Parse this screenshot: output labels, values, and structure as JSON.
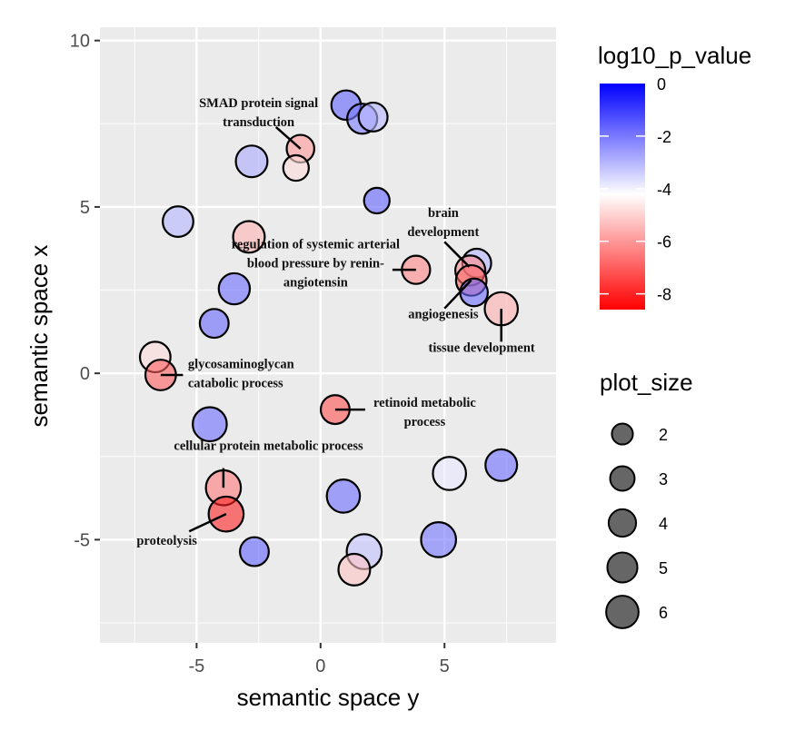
{
  "chart_data": {
    "type": "scatter",
    "subtype": "bubble",
    "title": "",
    "xlabel": "semantic space y",
    "ylabel": "semantic space x",
    "xlim": [
      -8.9,
      9.5
    ],
    "ylim": [
      -8.1,
      10.4
    ],
    "x_ticks": [
      -5,
      0,
      5
    ],
    "x_tick_labels": [
      "-5",
      "0",
      "5"
    ],
    "y_ticks": [
      -5,
      0,
      5,
      10
    ],
    "y_tick_labels": [
      "-5",
      "0",
      "5",
      "10"
    ],
    "grid": true,
    "color_legend": {
      "title": "log10_p_value",
      "placement": "top-right",
      "range": [
        -8.6,
        0
      ],
      "colors": {
        "low": "#ff0000",
        "mid": "#ffffff",
        "high": "#0000ff"
      },
      "midpoint": -4.2,
      "ticks": [
        0,
        -2,
        -4,
        -6,
        -8
      ],
      "tick_labels": [
        "0",
        "-2",
        "-4",
        "-6",
        "-8"
      ]
    },
    "size_legend": {
      "title": "plot_size",
      "placement": "right",
      "values": [
        2,
        3,
        4,
        5,
        6
      ],
      "labels": [
        "2",
        "3",
        "4",
        "5",
        "6"
      ]
    },
    "points": [
      {
        "x": 1.03,
        "y": 8.06,
        "size": 3.2,
        "log10_p_value": -1.6,
        "label": ""
      },
      {
        "x": 1.68,
        "y": 7.65,
        "size": 3.4,
        "log10_p_value": -2.0,
        "label": ""
      },
      {
        "x": 2.12,
        "y": 7.7,
        "size": 3.0,
        "log10_p_value": -3.0,
        "label": ""
      },
      {
        "x": -0.81,
        "y": 6.75,
        "size": 2.6,
        "log10_p_value": -6.0,
        "label": "SMAD protein signal transduction"
      },
      {
        "x": -0.99,
        "y": 6.17,
        "size": 2.0,
        "log10_p_value": -4.8,
        "label": ""
      },
      {
        "x": -2.78,
        "y": 6.37,
        "size": 4.0,
        "log10_p_value": -2.8,
        "label": ""
      },
      {
        "x": 2.27,
        "y": 5.19,
        "size": 2.0,
        "log10_p_value": -1.6,
        "label": ""
      },
      {
        "x": -5.75,
        "y": 4.56,
        "size": 3.6,
        "log10_p_value": -3.0,
        "label": ""
      },
      {
        "x": -2.89,
        "y": 4.1,
        "size": 4.0,
        "log10_p_value": -5.5,
        "label": ""
      },
      {
        "x": 3.85,
        "y": 3.11,
        "size": 2.8,
        "log10_p_value": -6.3,
        "label": "regulation of systemic arterial blood pressure by renin-angiotensin"
      },
      {
        "x": 6.3,
        "y": 3.31,
        "size": 3.0,
        "log10_p_value": -3.0,
        "label": "brain development"
      },
      {
        "x": 6.04,
        "y": 3.09,
        "size": 3.4,
        "log10_p_value": -6.2,
        "label": ""
      },
      {
        "x": 6.08,
        "y": 2.79,
        "size": 3.6,
        "log10_p_value": -6.8,
        "label": "angiogenesis"
      },
      {
        "x": 6.19,
        "y": 2.43,
        "size": 2.6,
        "log10_p_value": -1.8,
        "label": ""
      },
      {
        "x": 7.29,
        "y": 1.94,
        "size": 4.6,
        "log10_p_value": -5.6,
        "label": "tissue development"
      },
      {
        "x": -3.48,
        "y": 2.54,
        "size": 3.8,
        "log10_p_value": -1.8,
        "label": ""
      },
      {
        "x": -4.29,
        "y": 1.5,
        "size": 3.0,
        "log10_p_value": -1.7,
        "label": ""
      },
      {
        "x": -6.67,
        "y": 0.49,
        "size": 3.6,
        "log10_p_value": -4.8,
        "label": ""
      },
      {
        "x": -6.45,
        "y": -0.05,
        "size": 3.6,
        "log10_p_value": -7.0,
        "label": "glycosaminoglycan catabolic process"
      },
      {
        "x": 0.59,
        "y": -1.09,
        "size": 3.0,
        "log10_p_value": -7.2,
        "label": "retinoid metabolic process"
      },
      {
        "x": -4.47,
        "y": -1.53,
        "size": 5.0,
        "log10_p_value": -1.8,
        "label": ""
      },
      {
        "x": -3.92,
        "y": -3.44,
        "size": 5.4,
        "log10_p_value": -6.5,
        "label": "cellular protein metabolic  process"
      },
      {
        "x": -3.81,
        "y": -4.23,
        "size": 5.4,
        "log10_p_value": -8.0,
        "label": "proteolysis"
      },
      {
        "x": 0.92,
        "y": -3.69,
        "size": 4.6,
        "log10_p_value": -1.8,
        "label": ""
      },
      {
        "x": 5.2,
        "y": -3.01,
        "size": 4.6,
        "log10_p_value": -3.8,
        "label": ""
      },
      {
        "x": 7.29,
        "y": -2.76,
        "size": 4.0,
        "log10_p_value": -1.8,
        "label": ""
      },
      {
        "x": 4.76,
        "y": -5.0,
        "size": 5.4,
        "log10_p_value": -1.9,
        "label": ""
      },
      {
        "x": 1.76,
        "y": -5.36,
        "size": 5.4,
        "log10_p_value": -3.2,
        "label": ""
      },
      {
        "x": 1.36,
        "y": -5.9,
        "size": 4.0,
        "log10_p_value": -5.2,
        "label": ""
      },
      {
        "x": -2.67,
        "y": -5.36,
        "size": 3.0,
        "log10_p_value": -1.6,
        "label": ""
      }
    ],
    "annotations": [
      {
        "text": [
          "SMAD protein signal",
          "transduction"
        ],
        "anchor_x": -0.81,
        "anchor_y": 6.75,
        "text_x": -2.5,
        "text_y": 8.0,
        "line_from": [
          -1.8,
          7.4
        ],
        "align": "middle"
      },
      {
        "text": [
          "regulation of systemic arterial",
          "blood pressure by renin-",
          "angiotensin"
        ],
        "anchor_x": 3.85,
        "anchor_y": 3.11,
        "text_x": -0.2,
        "text_y": 3.75,
        "line_from": [
          2.9,
          3.11
        ],
        "align": "middle"
      },
      {
        "text": [
          "brain",
          "development"
        ],
        "anchor_x": 6.0,
        "anchor_y": 3.2,
        "text_x": 4.95,
        "text_y": 4.7,
        "line_from": [
          5.0,
          3.95
        ],
        "align": "middle"
      },
      {
        "text": [
          "angiogenesis"
        ],
        "anchor_x": 6.08,
        "anchor_y": 2.8,
        "text_x": 4.95,
        "text_y": 1.65,
        "line_from": [
          5.0,
          1.95
        ],
        "align": "middle"
      },
      {
        "text": [
          "tissue development"
        ],
        "anchor_x": 7.29,
        "anchor_y": 1.94,
        "text_x": 6.5,
        "text_y": 0.65,
        "line_from": [
          7.29,
          0.95
        ],
        "align": "middle"
      },
      {
        "text": [
          "glycosaminoglycan",
          "catabolic process"
        ],
        "anchor_x": -6.45,
        "anchor_y": -0.05,
        "text_x": -5.35,
        "text_y": 0.15,
        "line_from": [
          -5.55,
          -0.05
        ],
        "align": "start"
      },
      {
        "text": [
          "retinoid metabolic",
          "process"
        ],
        "anchor_x": 0.59,
        "anchor_y": -1.09,
        "text_x": 4.2,
        "text_y": -1.0,
        "line_from": [
          1.8,
          -1.09
        ],
        "align": "middle"
      },
      {
        "text": [
          "cellular protein metabolic  process"
        ],
        "anchor_x": -3.92,
        "anchor_y": -3.44,
        "text_x": -2.1,
        "text_y": -2.3,
        "line_from": [
          -3.92,
          -2.85
        ],
        "align": "middle"
      },
      {
        "text": [
          "proteolysis"
        ],
        "anchor_x": -3.81,
        "anchor_y": -4.23,
        "text_x": -6.2,
        "text_y": -5.15,
        "line_from": [
          -5.3,
          -4.75
        ],
        "align": "middle"
      }
    ]
  }
}
